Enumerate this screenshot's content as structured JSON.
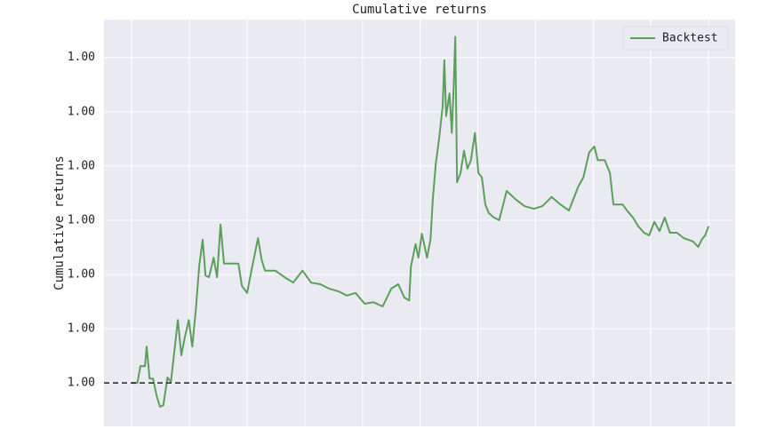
{
  "chart_data": {
    "type": "line",
    "title": "Cumulative returns",
    "y_label": "Cumulative returns",
    "x": [
      0,
      1,
      1.5,
      2.3,
      2.6,
      3.1,
      3.7,
      4.3,
      4.9,
      5.5,
      6.2,
      6.8,
      7.4,
      8.0,
      8.6,
      9.2,
      9.9,
      10.5,
      11.1,
      11.7,
      12.3,
      12.8,
      13.4,
      14.2,
      14.8,
      15.4,
      16.0,
      17.3,
      18.5,
      19.1,
      20.0,
      20.9,
      21.9,
      22.5,
      23.1,
      24.9,
      26.5,
      28.0,
      29.6,
      31.1,
      32.7,
      34.2,
      35.8,
      37.3,
      38.8,
      40.4,
      41.9,
      43.5,
      45.0,
      46.2,
      47.3,
      48.1,
      48.4,
      49.2,
      49.7,
      50.3,
      51.2,
      51.8,
      52.2,
      52.7,
      53.3,
      53.9,
      54.2,
      54.5,
      55.1,
      55.5,
      55.8,
      56.1,
      56.4,
      57.0,
      57.6,
      58.2,
      58.8,
      59.5,
      60.1,
      60.7,
      61.3,
      61.9,
      62.8,
      63.7,
      65.0,
      66.6,
      68.1,
      69.7,
      71.2,
      72.8,
      74.3,
      75.8,
      77.4,
      78.3,
      79.3,
      80.2,
      80.8,
      82.0,
      82.9,
      83.5,
      85.1,
      86.0,
      86.9,
      87.8,
      88.8,
      89.7,
      90.6,
      91.5,
      92.4,
      93.3,
      94.5,
      95.7,
      97.3,
      98.2,
      98.8,
      99.4,
      100
    ],
    "series": [
      {
        "name": "Backtest",
        "color": "#5c9f5c",
        "values": [
          1.0,
          1.0,
          1.000031,
          1.000031,
          1.000067,
          1.000008,
          1.000008,
          0.999977,
          0.999956,
          0.999959,
          1.00001,
          1.000002,
          1.000059,
          1.000116,
          1.000051,
          1.000084,
          1.000116,
          1.000067,
          1.000133,
          1.000215,
          1.000264,
          1.000198,
          1.000195,
          1.000231,
          1.000195,
          1.000292,
          1.00022,
          1.00022,
          1.00022,
          1.000179,
          1.000166,
          1.000215,
          1.000267,
          1.000228,
          1.000207,
          1.000207,
          1.000195,
          1.000185,
          1.000207,
          1.000185,
          1.000182,
          1.000174,
          1.000169,
          1.000161,
          1.000166,
          1.000146,
          1.000149,
          1.000141,
          1.000174,
          1.000182,
          1.000157,
          1.000152,
          1.000215,
          1.000256,
          1.000231,
          1.000275,
          1.000231,
          1.000264,
          1.000338,
          1.000403,
          1.000452,
          1.00051,
          1.000595,
          1.000492,
          1.000534,
          1.000461,
          1.000543,
          1.000638,
          1.00037,
          1.000387,
          1.000428,
          1.000395,
          1.000411,
          1.000461,
          1.000387,
          1.000379,
          1.000329,
          1.000313,
          1.000305,
          1.0003,
          1.000354,
          1.000338,
          1.000326,
          1.000321,
          1.000326,
          1.000343,
          1.000329,
          1.000318,
          1.000362,
          1.000379,
          1.000425,
          1.000436,
          1.000411,
          1.000411,
          1.000387,
          1.000329,
          1.000329,
          1.000316,
          1.000305,
          1.000289,
          1.000277,
          1.000272,
          1.000297,
          1.00028,
          1.000305,
          1.000277,
          1.000277,
          1.000267,
          1.000261,
          1.000251,
          1.000264,
          1.000272,
          1.000289
        ]
      }
    ],
    "xlim": [
      -4.8,
      104.6
    ],
    "xticks": [
      0,
      10,
      20,
      30,
      40,
      50,
      60,
      70,
      80,
      90,
      100
    ],
    "ylim": [
      0.99992,
      1.00067
    ],
    "yticks": [
      {
        "value": 1.0,
        "label": "1.00"
      },
      {
        "value": 1.0001,
        "label": "1.00"
      },
      {
        "value": 1.0002,
        "label": "1.00"
      },
      {
        "value": 1.0003,
        "label": "1.00"
      },
      {
        "value": 1.0004,
        "label": "1.00"
      },
      {
        "value": 1.0005,
        "label": "1.00"
      },
      {
        "value": 1.0006,
        "label": "1.00"
      }
    ],
    "baseline": 1.0,
    "grid": true,
    "legend": "upper right"
  }
}
